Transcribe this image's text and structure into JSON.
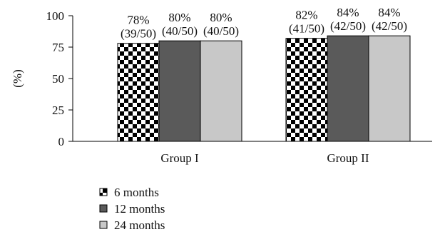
{
  "chart_data": {
    "type": "bar",
    "title": "",
    "xlabel": "",
    "ylabel": "(%)",
    "ylim": [
      0,
      100
    ],
    "yticks": [
      0,
      25,
      50,
      75,
      100
    ],
    "grid": false,
    "legend_position": "bottom-left",
    "categories": [
      "Group I",
      "Group II"
    ],
    "series": [
      {
        "name": "6 months",
        "values": [
          78,
          82
        ],
        "labels_pct": [
          "78%",
          "82%"
        ],
        "labels_frac": [
          "(39/50)",
          "(41/50)"
        ],
        "pattern": "checkerboard",
        "color": "#000000"
      },
      {
        "name": "12 months",
        "values": [
          80,
          84
        ],
        "labels_pct": [
          "80%",
          "84%"
        ],
        "labels_frac": [
          "(40/50)",
          "(42/50)"
        ],
        "pattern": "solid",
        "color": "#5a5a5a"
      },
      {
        "name": "24 months",
        "values": [
          80,
          84
        ],
        "labels_pct": [
          "80%",
          "84%"
        ],
        "labels_frac": [
          "(40/50)",
          "(42/50)"
        ],
        "pattern": "solid",
        "color": "#c8c8c8"
      }
    ]
  }
}
